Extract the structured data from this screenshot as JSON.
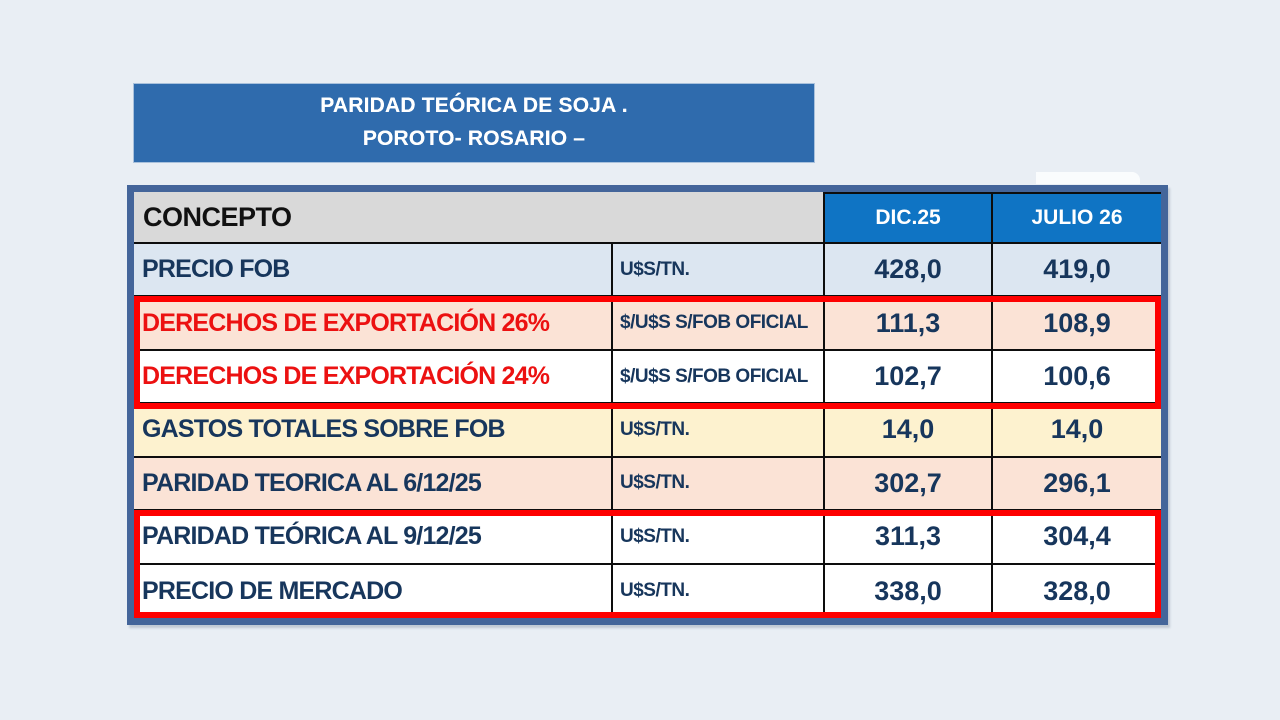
{
  "title": {
    "line1": "PARIDAD TEÓRICA DE SOJA .",
    "line2": "POROTO- ROSARIO –"
  },
  "table": {
    "header": {
      "concept": "CONCEPTO",
      "month1": "DIC.25",
      "month2": "JULIO 26"
    },
    "rows": [
      {
        "concept": "PRECIO FOB",
        "unit": "U$S/TN.",
        "dic25": "428,0",
        "julio26": "419,0"
      },
      {
        "concept": "DERECHOS DE EXPORTACIÓN 26%",
        "unit": "$/U$S S/FOB OFICIAL",
        "dic25": "111,3",
        "julio26": "108,9"
      },
      {
        "concept": "DERECHOS DE EXPORTACIÓN 24%",
        "unit": "$/U$S S/FOB OFICIAL",
        "dic25": "102,7",
        "julio26": "100,6"
      },
      {
        "concept": "GASTOS TOTALES SOBRE FOB",
        "unit": "U$S/TN.",
        "dic25": "14,0",
        "julio26": "14,0"
      },
      {
        "concept": "PARIDAD TEORICA AL 6/12/25",
        "unit": "U$S/TN.",
        "dic25": "302,7",
        "julio26": "296,1"
      },
      {
        "concept": "PARIDAD TEÓRICA AL 9/12/25",
        "unit": "U$S/TN.",
        "dic25": "311,3",
        "julio26": "304,4"
      },
      {
        "concept": "PRECIO DE MERCADO",
        "unit": "U$S/TN.",
        "dic25": "338,0",
        "julio26": "328,0"
      }
    ]
  },
  "colors": {
    "page_background": "#e9eef4",
    "title_blue": "#2f6bad",
    "header_blue": "#0f74c4",
    "table_border_blue": "#44659a",
    "highlight_red": "#fe0000",
    "navy_text": "#17365c",
    "red_text": "#ec1111",
    "row_light_blue": "#dce6f1",
    "row_peach": "#fbe3d6",
    "row_yellow": "#fdf2cf",
    "header_gray": "#d9d9d9"
  }
}
